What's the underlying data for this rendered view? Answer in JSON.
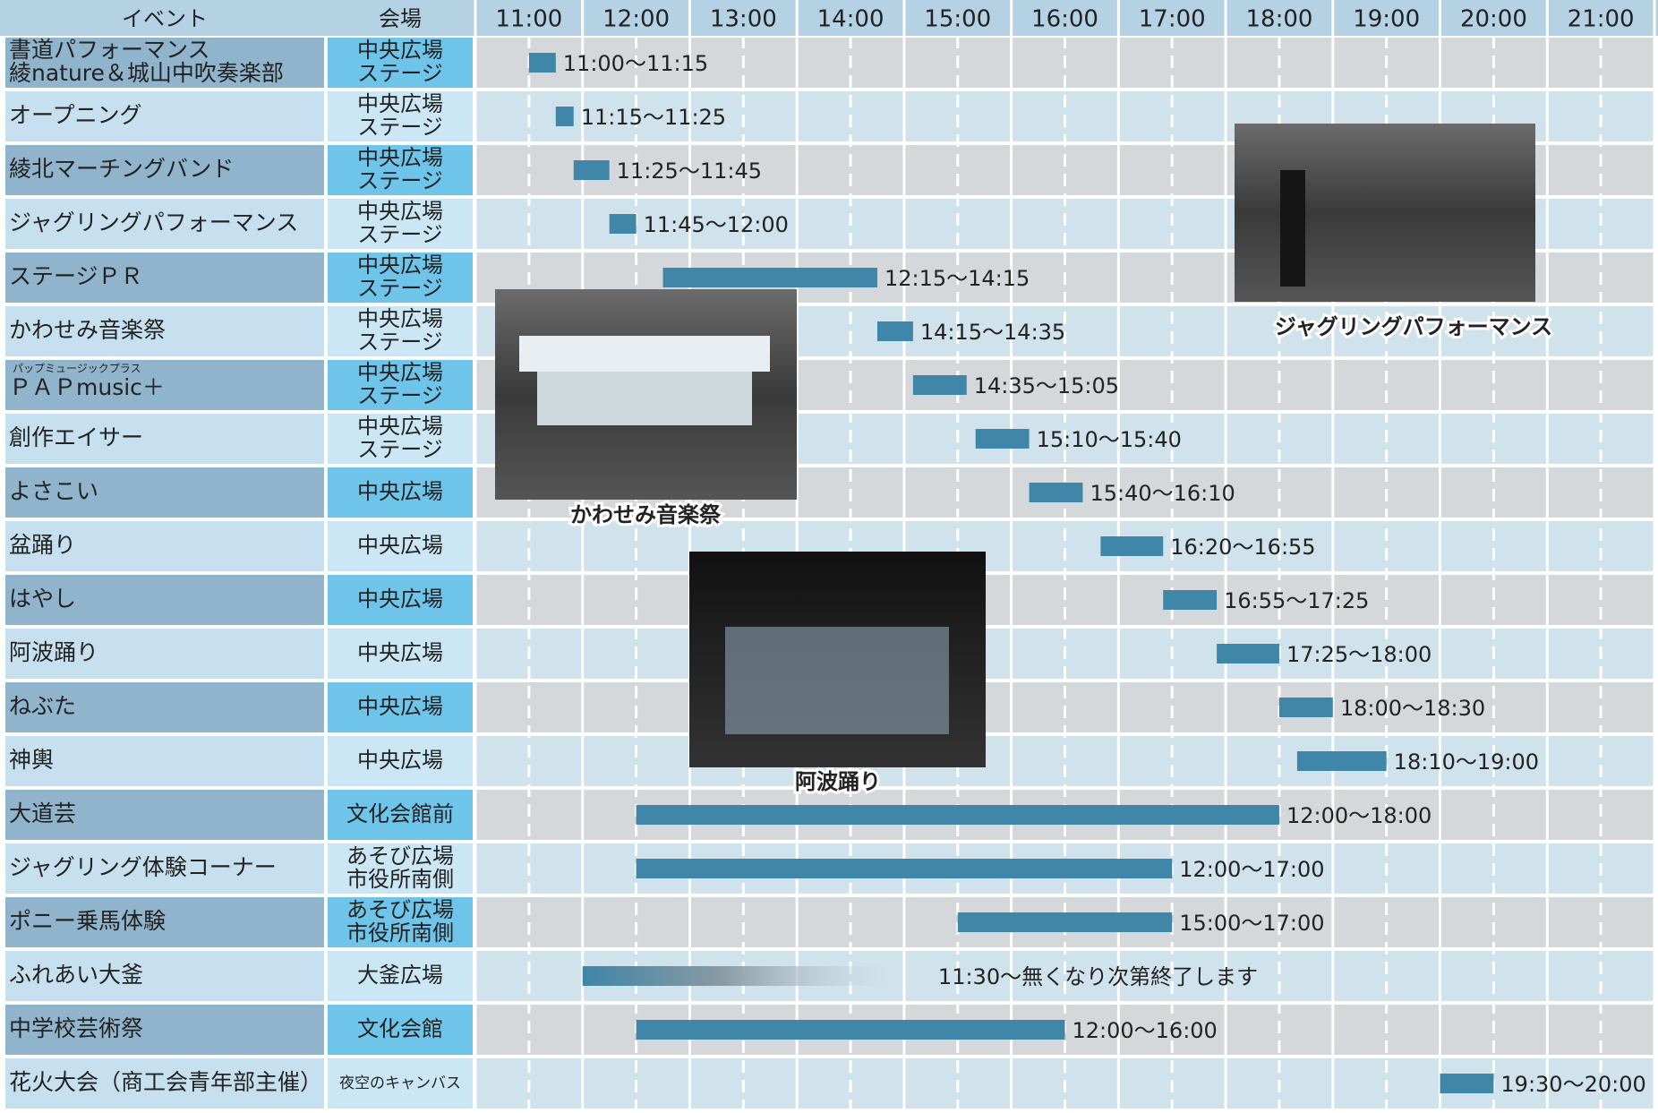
{
  "header": {
    "event": "イベント",
    "venue": "会場"
  },
  "timeline": {
    "xlim": [
      10.5,
      21.5
    ],
    "xticks": [
      {
        "value": 11,
        "label": "11:00"
      },
      {
        "value": 12,
        "label": "12:00"
      },
      {
        "value": 13,
        "label": "13:00"
      },
      {
        "value": 14,
        "label": "14:00"
      },
      {
        "value": 15,
        "label": "15:00"
      },
      {
        "value": 16,
        "label": "16:00"
      },
      {
        "value": 17,
        "label": "17:00"
      },
      {
        "value": 18,
        "label": "18:00"
      },
      {
        "value": 19,
        "label": "19:00"
      },
      {
        "value": 20,
        "label": "20:00"
      },
      {
        "value": 21,
        "label": "21:00"
      }
    ]
  },
  "rows": [
    {
      "event": [
        "書道パフォーマンス",
        "綾nature＆城山中吹奏楽部"
      ],
      "venue": [
        "中央広場",
        "ステージ"
      ],
      "start": 11,
      "end": 11.25,
      "time": "11:00～11:15"
    },
    {
      "event": [
        "オープニング"
      ],
      "venue": [
        "中央広場",
        "ステージ"
      ],
      "start": 11.25,
      "end": 11.4167,
      "time": "11:15～11:25"
    },
    {
      "event": [
        "綾北マーチングバンド"
      ],
      "venue": [
        "中央広場",
        "ステージ"
      ],
      "start": 11.4167,
      "end": 11.75,
      "time": "11:25～11:45"
    },
    {
      "event": [
        "ジャグリングパフォーマンス"
      ],
      "venue": [
        "中央広場",
        "ステージ"
      ],
      "start": 11.75,
      "end": 12,
      "time": "11:45～12:00"
    },
    {
      "event": [
        "ステージＰＲ"
      ],
      "venue": [
        "中央広場",
        "ステージ"
      ],
      "start": 12.25,
      "end": 14.25,
      "time": "12:15～14:15"
    },
    {
      "event": [
        "かわせみ音楽祭"
      ],
      "venue": [
        "中央広場",
        "ステージ"
      ],
      "start": 14.25,
      "end": 14.5833,
      "time": "14:15～14:35"
    },
    {
      "ruby": "パップミュージックプラス",
      "event": [
        "ＰＡＰmusic＋"
      ],
      "venue": [
        "中央広場",
        "ステージ"
      ],
      "start": 14.5833,
      "end": 15.0833,
      "time": "14:35～15:05"
    },
    {
      "event": [
        "創作エイサー"
      ],
      "venue": [
        "中央広場",
        "ステージ"
      ],
      "start": 15.1667,
      "end": 15.6667,
      "time": "15:10～15:40"
    },
    {
      "event": [
        "よさこい"
      ],
      "venue": [
        "中央広場"
      ],
      "start": 15.6667,
      "end": 16.1667,
      "time": "15:40～16:10"
    },
    {
      "event": [
        "盆踊り"
      ],
      "venue": [
        "中央広場"
      ],
      "start": 16.3333,
      "end": 16.9167,
      "time": "16:20～16:55"
    },
    {
      "event": [
        "はやし"
      ],
      "venue": [
        "中央広場"
      ],
      "start": 16.9167,
      "end": 17.4167,
      "time": "16:55～17:25"
    },
    {
      "event": [
        "阿波踊り"
      ],
      "venue": [
        "中央広場"
      ],
      "start": 17.4167,
      "end": 18,
      "time": "17:25～18:00"
    },
    {
      "event": [
        "ねぶた"
      ],
      "venue": [
        "中央広場"
      ],
      "start": 18,
      "end": 18.5,
      "time": "18:00～18:30"
    },
    {
      "event": [
        "神輿"
      ],
      "venue": [
        "中央広場"
      ],
      "start": 18.1667,
      "end": 19,
      "time": "18:10～19:00"
    },
    {
      "event": [
        "大道芸"
      ],
      "venue": [
        "文化会館前"
      ],
      "start": 12,
      "end": 18,
      "time": "12:00～18:00"
    },
    {
      "event": [
        "ジャグリング体験コーナー"
      ],
      "venue": [
        "あそび広場",
        "市役所南側"
      ],
      "start": 12,
      "end": 17,
      "time": "12:00～17:00"
    },
    {
      "event": [
        "ポニー乗馬体験"
      ],
      "venue": [
        "あそび広場",
        "市役所南側"
      ],
      "start": 15,
      "end": 17,
      "time": "15:00～17:00"
    },
    {
      "event": [
        "ふれあい大釜"
      ],
      "venue": [
        "大釜広場"
      ],
      "start": 11.5,
      "end": 14.4,
      "fade": true,
      "time": "11:30～無くなり次第終了します"
    },
    {
      "event": [
        "中学校芸術祭"
      ],
      "venue": [
        "文化会館"
      ],
      "start": 12,
      "end": 16,
      "time": "12:00～16:00"
    },
    {
      "event": [
        "花火大会（商工会青年部主催）"
      ],
      "venue": [
        "夜空のキャンバス"
      ],
      "small_venue": true,
      "start": 19.5,
      "end": 20,
      "time": "19:30～20:00"
    }
  ],
  "photos": [
    {
      "caption": "かわせみ音楽祭"
    },
    {
      "caption": "ジャグリングパフォーマンス"
    },
    {
      "caption": "阿波踊り"
    }
  ]
}
